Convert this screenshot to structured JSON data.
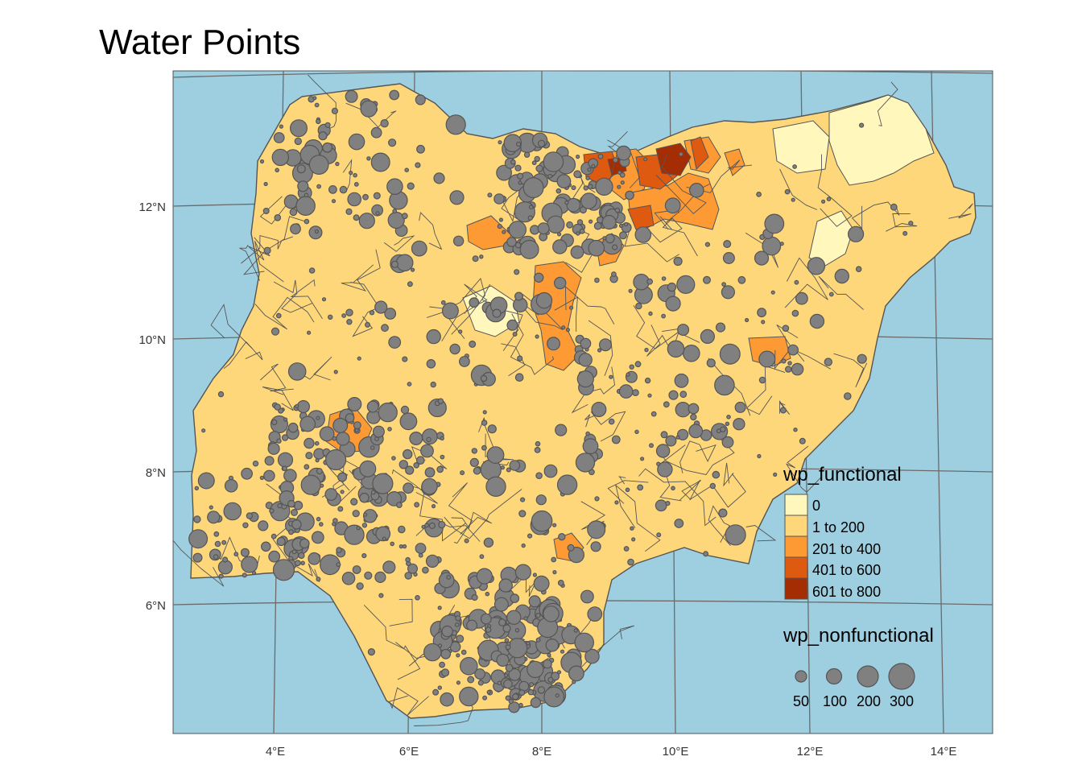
{
  "title": "Water Points",
  "axes": {
    "x_ticks": [
      "4°E",
      "6°E",
      "8°E",
      "10°E",
      "12°E",
      "14°E"
    ],
    "y_ticks": [
      "12°N",
      "10°N",
      "8°N",
      "6°N"
    ]
  },
  "colors": {
    "sea": "#9ecfe0",
    "graticule": "#6b6b6b",
    "boundary": "#555555",
    "bubble_fill": "#808080",
    "bubble_stroke": "#555555"
  },
  "legend_fill": {
    "title": "wp_functional",
    "classes": [
      {
        "label": "0",
        "color": "#fff7bc"
      },
      {
        "label": "1 to 200",
        "color": "#fed77a"
      },
      {
        "label": "201 to 400",
        "color": "#fd9a34"
      },
      {
        "label": "401 to 600",
        "color": "#df5a11"
      },
      {
        "label": "601 to 800",
        "color": "#a42d04"
      }
    ]
  },
  "legend_size": {
    "title": "wp_nonfunctional",
    "items": [
      {
        "label": "50",
        "value": 50
      },
      {
        "label": "100",
        "value": 100
      },
      {
        "label": "200",
        "value": 200
      },
      {
        "label": "300",
        "value": 300
      }
    ]
  }
}
